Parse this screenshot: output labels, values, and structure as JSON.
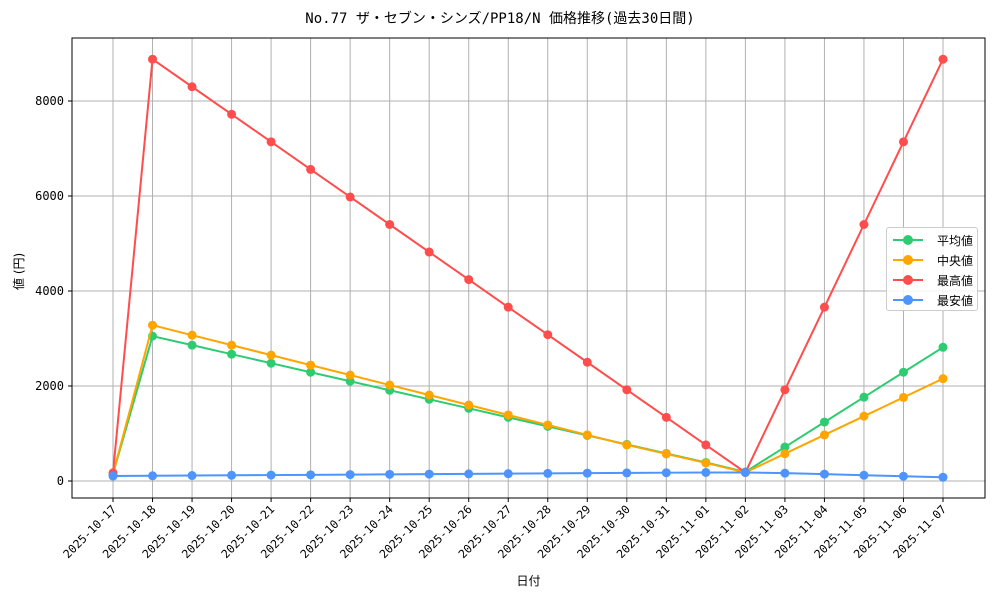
{
  "chart_data": {
    "type": "line",
    "title": "No.77 ザ・セブン・シンズ/PP18/N 価格推移(過去30日間)",
    "xlabel": "日付",
    "ylabel": "値 (円)",
    "ylim": [
      -350,
      9350
    ],
    "yticks": [
      0,
      2000,
      4000,
      6000,
      8000
    ],
    "grid": true,
    "legend_position": "center right",
    "categories": [
      "2025-10-17",
      "2025-10-18",
      "2025-10-19",
      "2025-10-20",
      "2025-10-21",
      "2025-10-22",
      "2025-10-23",
      "2025-10-24",
      "2025-10-25",
      "2025-10-26",
      "2025-10-27",
      "2025-10-28",
      "2025-10-29",
      "2025-10-30",
      "2025-10-31",
      "2025-11-01",
      "2025-11-02",
      "2025-11-03",
      "2025-11-04",
      "2025-11-05",
      "2025-11-06",
      "2025-11-07"
    ],
    "series": [
      {
        "name": "平均値",
        "color": "#2ecc71",
        "values": [
          150,
          3050,
          2860,
          2670,
          2480,
          2290,
          2100,
          1910,
          1720,
          1530,
          1340,
          1150,
          960,
          770,
          580,
          390,
          190,
          715,
          1240,
          1765,
          2290,
          2815
        ]
      },
      {
        "name": "中央値",
        "color": "#ffa500",
        "values": [
          150,
          3280,
          3070,
          2860,
          2650,
          2440,
          2230,
          2020,
          1810,
          1600,
          1390,
          1180,
          970,
          760,
          570,
          380,
          180,
          575,
          970,
          1365,
          1760,
          2155
        ]
      },
      {
        "name": "最高値",
        "color": "#ff4d4d",
        "values": [
          170,
          8880,
          8300,
          7720,
          7140,
          6560,
          5980,
          5400,
          4820,
          4240,
          3660,
          3080,
          2500,
          1920,
          1340,
          760,
          180,
          1920,
          3660,
          5400,
          7140,
          8880
        ]
      },
      {
        "name": "最安値",
        "color": "#4d94ff",
        "values": [
          105,
          110,
          115,
          120,
          125,
          130,
          135,
          140,
          145,
          150,
          155,
          160,
          165,
          170,
          175,
          180,
          180,
          165,
          145,
          120,
          100,
          80
        ]
      }
    ]
  }
}
